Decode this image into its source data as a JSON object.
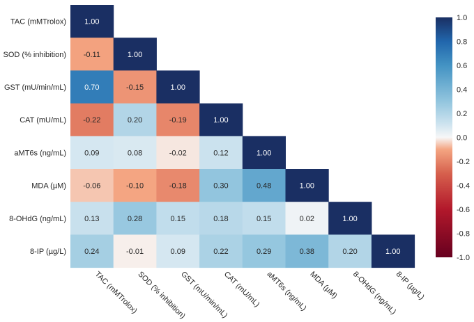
{
  "chart_data": {
    "type": "heatmap",
    "subtype": "lower-triangular correlation matrix",
    "labels": [
      "TAC (mMTrolox)",
      "SOD (% inhibition)",
      "GST (mU/min/mL)",
      "CAT (mU/mL)",
      "aMT6s (ng/mL)",
      "MDA (µM)",
      "8-OHdG (ng/mL)",
      "8-IP (µg/L)"
    ],
    "matrix": [
      [
        "1.00"
      ],
      [
        "-0.11",
        "1.00"
      ],
      [
        "0.70",
        "-0.15",
        "1.00"
      ],
      [
        "-0.22",
        "0.20",
        "-0.19",
        "1.00"
      ],
      [
        "0.09",
        "0.08",
        "-0.02",
        "0.12",
        "1.00"
      ],
      [
        "-0.06",
        "-0.10",
        "-0.18",
        "0.30",
        "0.48",
        "1.00"
      ],
      [
        "0.13",
        "0.28",
        "0.15",
        "0.18",
        "0.15",
        "0.02",
        "1.00"
      ],
      [
        "0.24",
        "-0.01",
        "0.09",
        "0.22",
        "0.29",
        "0.38",
        "0.20",
        "1.00"
      ]
    ],
    "colorbar": {
      "range": [
        -1.0,
        1.0
      ],
      "ticks": [
        "1.0",
        "0.8",
        "0.6",
        "0.4",
        "0.2",
        "0.0",
        "-0.2",
        "-0.4",
        "-0.6",
        "-0.8",
        "-1.0"
      ],
      "colormap": "RdBu",
      "colors": {
        "max": "#1a2f63",
        "mid": "#f5f5f5",
        "min": "#6b0018"
      }
    },
    "title": "",
    "xlabel": "",
    "ylabel": "",
    "grid": false
  }
}
